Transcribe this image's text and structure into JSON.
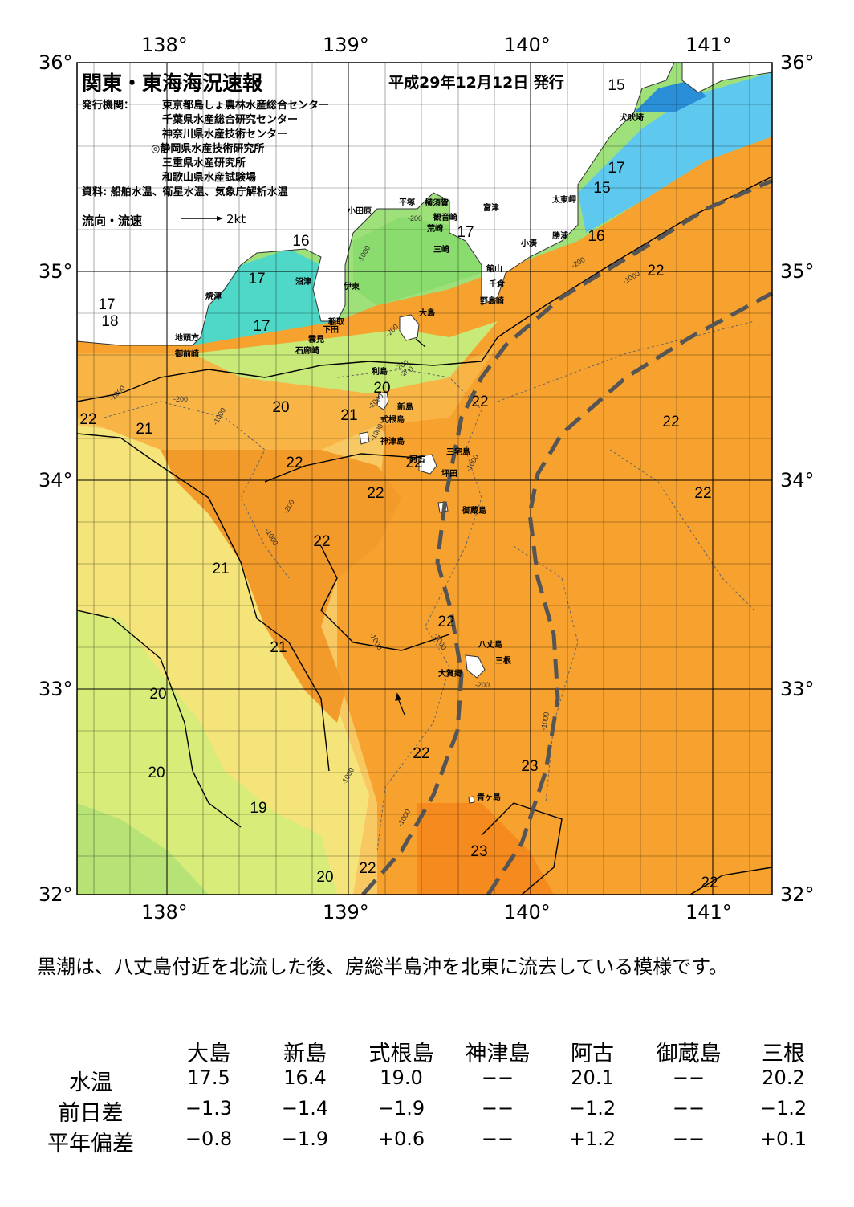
{
  "header": {
    "title": "関東・東海海況速報",
    "issue_date": "平成29年12月12日 発行",
    "issuer_label": "発行機関：",
    "issuers": [
      "東京都島しょ農林水産総合センター",
      "千葉県水産総合研究センター",
      "神奈川県水産技術センター",
      "◎静岡県水産技術研究所",
      "三重県水産研究所",
      "和歌山県水産試験場"
    ],
    "source": "資料: 船舶水温、衛星水温、気象庁解析水温",
    "flow_label": "流向・流速",
    "flow_scale": "2kt"
  },
  "map": {
    "lon_labels": [
      "138°",
      "139°",
      "140°",
      "141°"
    ],
    "lat_labels": [
      "36°",
      "35°",
      "34°",
      "33°",
      "32°"
    ],
    "temperature_labels": [
      "15",
      "15",
      "17",
      "17",
      "16",
      "22",
      "16",
      "17",
      "17",
      "17",
      "18",
      "20",
      "21",
      "20",
      "22",
      "22",
      "21",
      "22",
      "22",
      "22",
      "22",
      "22",
      "22",
      "21",
      "21",
      "20",
      "20",
      "22",
      "23",
      "19",
      "23",
      "20",
      "22",
      "22",
      "22"
    ],
    "depth_labels": [
      "-1000",
      "-200",
      "-1000",
      "-200",
      "-1000",
      "-200",
      "-1000",
      "-200",
      "-1000",
      "-1000",
      "-200",
      "-1000",
      "-1000",
      "-200",
      "-1000",
      "-200",
      "-1000",
      "-200",
      "-1000",
      "-1000",
      "-1000"
    ],
    "place_names": [
      "犬吠埼",
      "太東岬",
      "勝浦",
      "小湊",
      "富津",
      "観音崎",
      "横須賀",
      "平塚",
      "小田原",
      "荒崎",
      "三崎",
      "館山",
      "千倉",
      "野島崎",
      "大島",
      "稲取",
      "下田",
      "雲見",
      "石廊崎",
      "伊東",
      "沼津",
      "焼津",
      "地頭方",
      "御前崎",
      "利島",
      "新島",
      "式根島",
      "神津島",
      "三宅島",
      "坪田",
      "阿古",
      "御蔵島",
      "八丈島",
      "三根",
      "大賀郷",
      "青ヶ島"
    ],
    "colors": {
      "orange_deep": "#f58a1f",
      "orange": "#f7a12e",
      "orange_light": "#f9b446",
      "yellow_orange": "#f8c862",
      "yellow": "#f4e47a",
      "yellow_green": "#d8ec7a",
      "green": "#8ed866",
      "cyan": "#4fd8c8",
      "light_blue": "#5fc8ee",
      "blue": "#2a8fd6",
      "kuroshio_line": "#555555"
    }
  },
  "summary": "黒潮は、八丈島付近を北流した後、房総半島沖を北東に流去している模様です。",
  "table": {
    "columns": [
      "大島",
      "新島",
      "式根島",
      "神津島",
      "阿古",
      "御蔵島",
      "三根"
    ],
    "rows": [
      {
        "label": "水温",
        "values": [
          "17.5",
          "16.4",
          "19.0",
          "−−",
          "20.1",
          "−−",
          "20.2"
        ]
      },
      {
        "label": "前日差",
        "values": [
          "−1.3",
          "−1.4",
          "−1.9",
          "−−",
          "−1.2",
          "−−",
          "−1.2"
        ]
      },
      {
        "label": "平年偏差",
        "values": [
          "−0.8",
          "−1.9",
          "+0.6",
          "−−",
          "+1.2",
          "−−",
          "+0.1"
        ]
      }
    ]
  }
}
